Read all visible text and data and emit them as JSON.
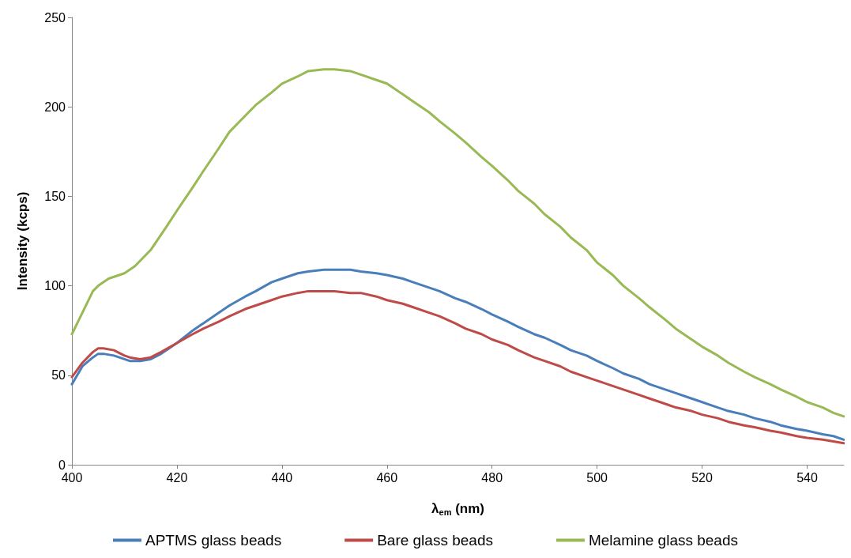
{
  "chart_data": {
    "type": "line",
    "xlabel": "λ$_{em}$ (nm)",
    "ylabel": "Intensity (kcps)",
    "x": [
      400,
      402,
      404,
      405,
      406,
      408,
      410,
      411,
      413,
      415,
      417,
      420,
      423,
      425,
      428,
      430,
      433,
      435,
      438,
      440,
      443,
      445,
      448,
      450,
      453,
      455,
      458,
      460,
      463,
      465,
      468,
      470,
      473,
      475,
      478,
      480,
      483,
      485,
      488,
      490,
      493,
      495,
      498,
      500,
      503,
      505,
      508,
      510,
      513,
      515,
      518,
      520,
      523,
      525,
      528,
      530,
      533,
      535,
      538,
      540,
      543,
      545,
      547
    ],
    "series": [
      {
        "name": "APTMS glass beads",
        "color": "#4a7ebb",
        "values": [
          45,
          55,
          60,
          62,
          62,
          61,
          59,
          58,
          58,
          59,
          62,
          68,
          75,
          79,
          85,
          89,
          94,
          97,
          102,
          104,
          107,
          108,
          109,
          109,
          109,
          108,
          107,
          106,
          104,
          102,
          99,
          97,
          93,
          91,
          87,
          84,
          80,
          77,
          73,
          71,
          67,
          64,
          61,
          58,
          54,
          51,
          48,
          45,
          42,
          40,
          37,
          35,
          32,
          30,
          28,
          26,
          24,
          22,
          20,
          19,
          17,
          16,
          14
        ]
      },
      {
        "name": "Bare glass beads",
        "color": "#be4b48",
        "values": [
          49,
          57,
          63,
          65,
          65,
          64,
          61,
          60,
          59,
          60,
          63,
          68,
          73,
          76,
          80,
          83,
          87,
          89,
          92,
          94,
          96,
          97,
          97,
          97,
          96,
          96,
          94,
          92,
          90,
          88,
          85,
          83,
          79,
          76,
          73,
          70,
          67,
          64,
          60,
          58,
          55,
          52,
          49,
          47,
          44,
          42,
          39,
          37,
          34,
          32,
          30,
          28,
          26,
          24,
          22,
          21,
          19,
          18,
          16,
          15,
          14,
          13,
          12
        ]
      },
      {
        "name": "Melamine glass beads",
        "color": "#98b954",
        "x": [
          400,
          402,
          404,
          405,
          407,
          410,
          412,
          415,
          418,
          420,
          423,
          425,
          428,
          430,
          432,
          435,
          438,
          440,
          443,
          445,
          448,
          450,
          453,
          455,
          458,
          460,
          463,
          465,
          468,
          470,
          473,
          475,
          478,
          480,
          483,
          485,
          488,
          490,
          493,
          495,
          498,
          500,
          503,
          505,
          508,
          510,
          513,
          515,
          518,
          520,
          523,
          525,
          528,
          530,
          533,
          535,
          538,
          540,
          543,
          545,
          547
        ],
        "values": [
          73,
          85,
          97,
          100,
          104,
          107,
          111,
          120,
          133,
          142,
          155,
          164,
          177,
          186,
          192,
          201,
          208,
          213,
          217,
          220,
          221,
          221,
          220,
          218,
          215,
          213,
          207,
          203,
          197,
          192,
          185,
          180,
          172,
          167,
          159,
          153,
          146,
          140,
          133,
          127,
          120,
          113,
          106,
          100,
          93,
          88,
          81,
          76,
          70,
          66,
          61,
          57,
          52,
          49,
          45,
          42,
          38,
          35,
          32,
          29,
          27
        ]
      }
    ],
    "xlim": [
      400,
      547
    ],
    "xticks": [
      400,
      420,
      440,
      460,
      480,
      500,
      520,
      540
    ],
    "ylim": [
      0,
      250
    ],
    "yticks": [
      0,
      50,
      100,
      150,
      200,
      250
    ],
    "grid": false,
    "legend": "bottom",
    "marker": "none",
    "line_style": "solid"
  }
}
